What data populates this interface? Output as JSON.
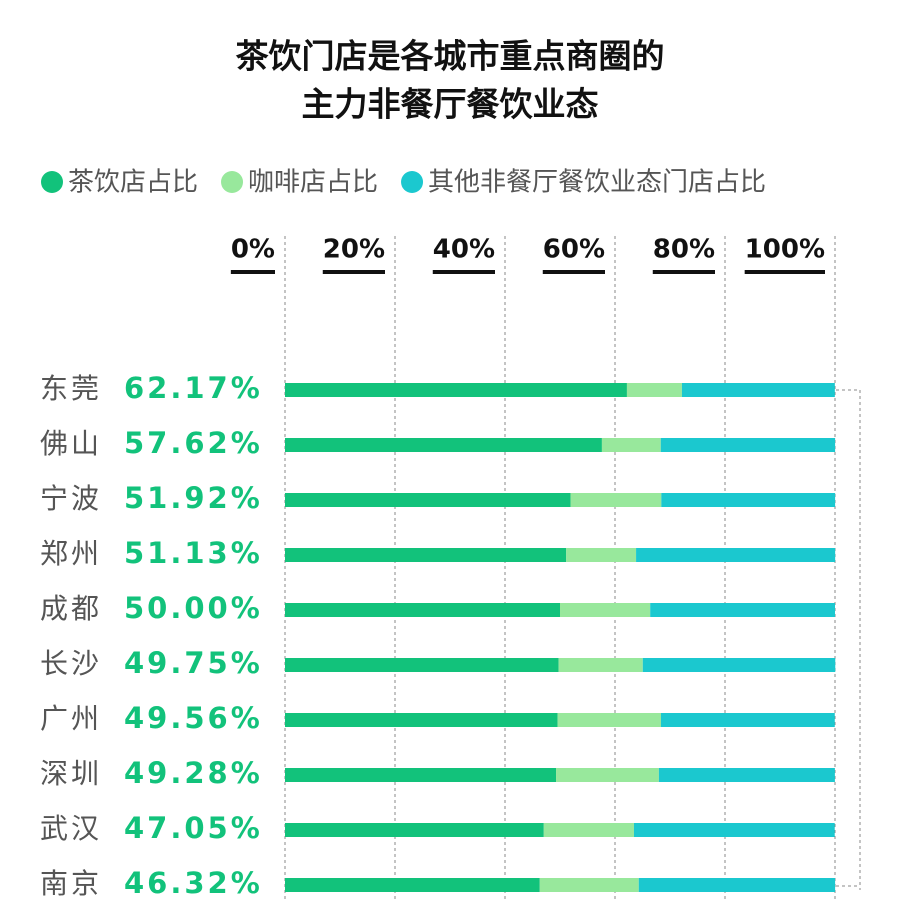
{
  "chart_data": {
    "type": "stacked-bar-horizontal",
    "title": [
      "茶饮门店是各城市重点商圈的",
      "主力非餐厅餐饮业态"
    ],
    "categories": [
      "东莞",
      "佛山",
      "宁波",
      "郑州",
      "成都",
      "长沙",
      "广州",
      "深圳",
      "武汉",
      "南京"
    ],
    "series": [
      {
        "name": "茶饮店占比",
        "color": "#12c27b",
        "values": [
          62.17,
          57.62,
          51.92,
          51.13,
          50.0,
          49.75,
          49.56,
          49.28,
          47.05,
          46.32
        ],
        "value_labels": [
          "62.17%",
          "57.62%",
          "51.92%",
          "51.13%",
          "50.00%",
          "49.75%",
          "49.56%",
          "49.28%",
          "47.05%",
          "46.32%"
        ]
      },
      {
        "name": "咖啡店占比",
        "color": "#98e89c",
        "values": [
          10.0,
          10.7,
          16.5,
          12.7,
          16.4,
          15.3,
          18.8,
          18.7,
          16.4,
          18.0
        ]
      },
      {
        "name": "其他非餐厅餐饮业态门店占比",
        "color": "#1bc8cf",
        "values": [
          27.8,
          31.7,
          31.6,
          36.2,
          33.6,
          35.0,
          31.6,
          32.0,
          36.5,
          35.7
        ]
      }
    ],
    "xlim": [
      0,
      100
    ],
    "xticks": [
      {
        "value": 0,
        "label": "0%"
      },
      {
        "value": 20,
        "label": "20%"
      },
      {
        "value": 40,
        "label": "40%"
      },
      {
        "value": 60,
        "label": "60%"
      },
      {
        "value": 80,
        "label": "80%"
      },
      {
        "value": 100,
        "label": "100%"
      }
    ],
    "grid": true
  }
}
